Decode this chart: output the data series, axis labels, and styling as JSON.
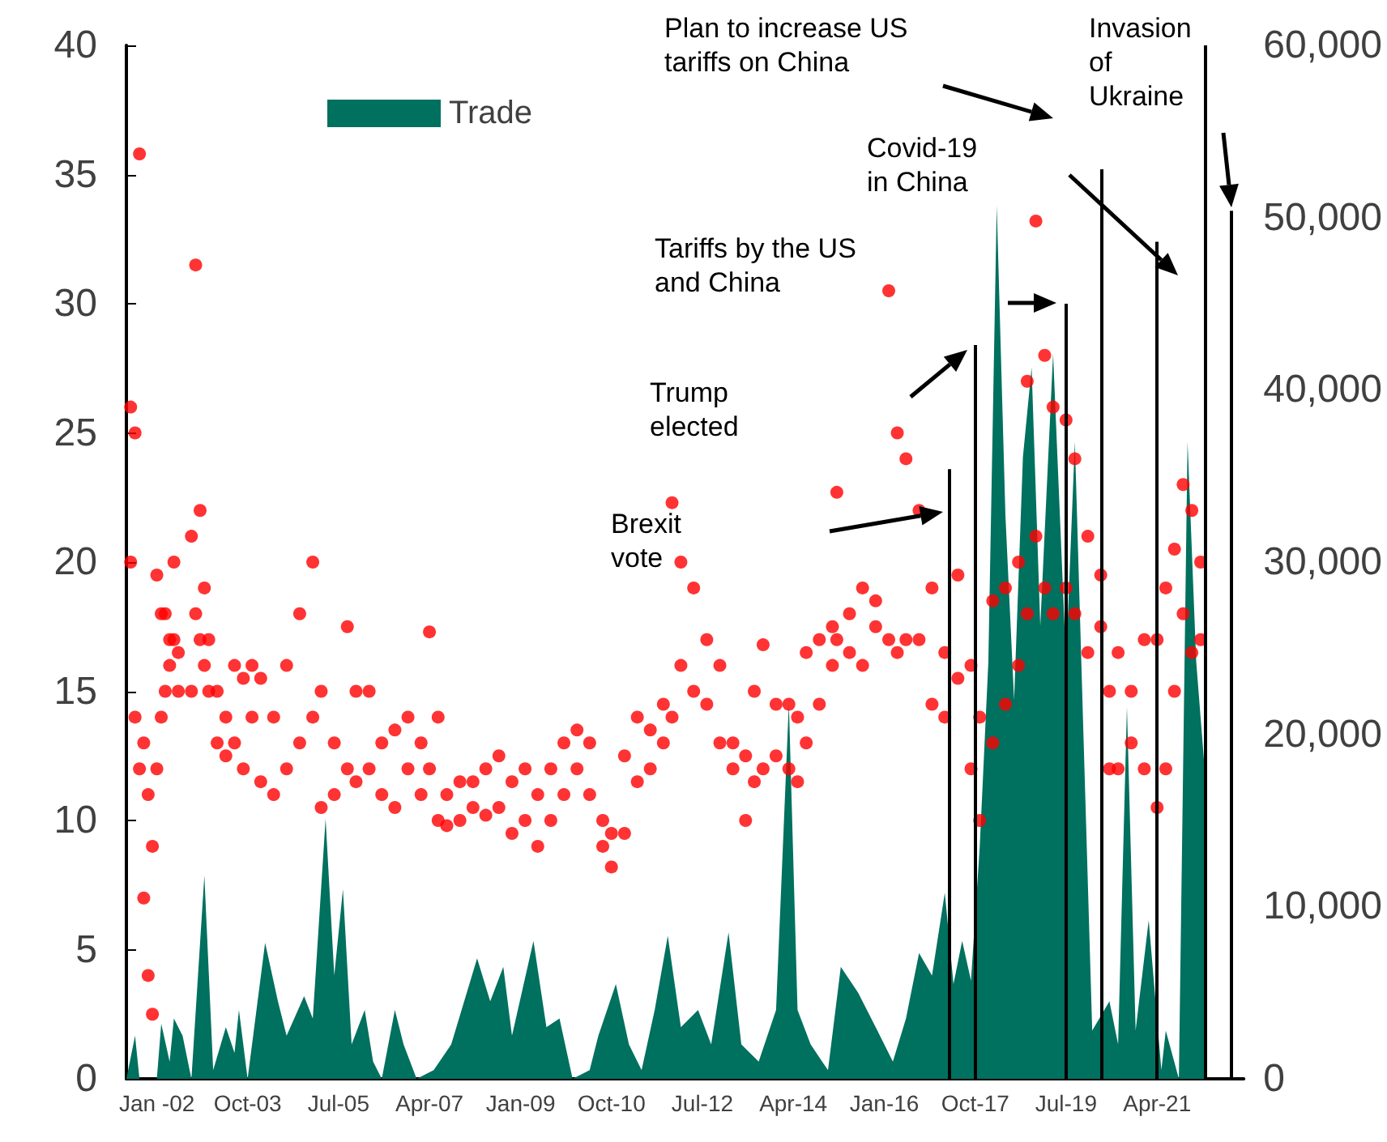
{
  "chart_data": {
    "type": "area",
    "legend": "top left",
    "xlim": [
      "2001-06",
      "2022-12"
    ],
    "xticks": [
      {
        "value": "2002-01",
        "label": "Jan -02"
      },
      {
        "value": "2003-10",
        "label": "Oct-03"
      },
      {
        "value": "2005-07",
        "label": "Jul-05"
      },
      {
        "value": "2007-04",
        "label": "Apr-07"
      },
      {
        "value": "2009-01",
        "label": "Jan-09"
      },
      {
        "value": "2010-10",
        "label": "Oct-10"
      },
      {
        "value": "2012-07",
        "label": "Jul-12"
      },
      {
        "value": "2014-04",
        "label": "Apr-14"
      },
      {
        "value": "2016-01",
        "label": "Jan-16"
      },
      {
        "value": "2017-10",
        "label": "Oct-17"
      },
      {
        "value": "2019-07",
        "label": "Jul-19"
      },
      {
        "value": "2021-04",
        "label": "Apr-21"
      }
    ],
    "ylim": [
      0,
      40
    ],
    "yticks": [
      0,
      5,
      10,
      15,
      20,
      25,
      30,
      35,
      40
    ],
    "y2lim": [
      0,
      60000
    ],
    "y2ticks": [
      {
        "value": 0,
        "label": "0"
      },
      {
        "value": 10000,
        "label": "10,000"
      },
      {
        "value": 20000,
        "label": "20,000"
      },
      {
        "value": 30000,
        "label": "30,000"
      },
      {
        "value": 40000,
        "label": "40,000"
      },
      {
        "value": 50000,
        "label": "50,000"
      },
      {
        "value": 60000,
        "label": "60,000"
      }
    ],
    "series": [
      {
        "name": "Trade",
        "type": "area",
        "axis": "y2",
        "color": "#00705f",
        "x": [
          "2001-06",
          "2001-08",
          "2001-09",
          "2002-01",
          "2002-02",
          "2002-04",
          "2002-05",
          "2002-07",
          "2002-09",
          "2002-12",
          "2003-02",
          "2003-05",
          "2003-07",
          "2003-08",
          "2003-10",
          "2004-02",
          "2004-05",
          "2004-07",
          "2004-11",
          "2005-01",
          "2005-04",
          "2005-06",
          "2005-08",
          "2005-10",
          "2006-01",
          "2006-03",
          "2006-05",
          "2006-08",
          "2006-10",
          "2007-01",
          "2007-05",
          "2007-09",
          "2008-03",
          "2008-06",
          "2008-09",
          "2008-11",
          "2009-04",
          "2009-07",
          "2009-10",
          "2010-01",
          "2010-05",
          "2010-07",
          "2010-11",
          "2011-02",
          "2011-05",
          "2011-08",
          "2011-11",
          "2012-02",
          "2012-06",
          "2012-09",
          "2013-01",
          "2013-04",
          "2013-08",
          "2013-12",
          "2014-03",
          "2014-05",
          "2014-08",
          "2014-12",
          "2015-03",
          "2015-07",
          "2015-11",
          "2016-03",
          "2016-06",
          "2016-09",
          "2016-12",
          "2017-03",
          "2017-05",
          "2017-07",
          "2017-09",
          "2017-11",
          "2018-01",
          "2018-03",
          "2018-05",
          "2018-07",
          "2018-09",
          "2018-11",
          "2019-01",
          "2019-04",
          "2019-07",
          "2019-09",
          "2019-11",
          "2020-01",
          "2020-05",
          "2020-07",
          "2020-09",
          "2020-11",
          "2021-02",
          "2021-05",
          "2021-06",
          "2021-09",
          "2021-11",
          "2022-01",
          "2022-03"
        ],
        "values": [
          0,
          2500,
          0,
          0,
          3200,
          1000,
          3500,
          2500,
          0,
          11800,
          500,
          3000,
          1500,
          4000,
          0,
          7900,
          4500,
          2500,
          4800,
          3500,
          15100,
          6000,
          11000,
          2000,
          4000,
          1000,
          0,
          4000,
          2000,
          0,
          500,
          2000,
          7000,
          4500,
          6500,
          2500,
          8000,
          3000,
          3500,
          0,
          500,
          2500,
          5500,
          2000,
          500,
          4000,
          8300,
          3000,
          4000,
          2000,
          8500,
          2000,
          1000,
          4000,
          21800,
          4000,
          2000,
          500,
          6500,
          5000,
          3000,
          1000,
          3500,
          7300,
          6000,
          10800,
          5500,
          8000,
          5700,
          13400,
          24200,
          50700,
          32700,
          22000,
          36100,
          41300,
          26300,
          42100,
          24200,
          37000,
          19800,
          2800,
          4500,
          2000,
          21600,
          2800,
          9200,
          500,
          2800,
          0,
          37000,
          24200,
          18000
        ]
      },
      {
        "type": "scatter",
        "marker": "circle",
        "color": "#ff0000",
        "x": [
          "2001-07",
          "2001-07",
          "2001-08",
          "2001-08",
          "2001-09",
          "2001-09",
          "2001-10",
          "2001-10",
          "2001-11",
          "2001-11",
          "2001-12",
          "2001-12",
          "2002-01",
          "2002-01",
          "2002-02",
          "2002-02",
          "2002-03",
          "2002-03",
          "2002-04",
          "2002-04",
          "2002-05",
          "2002-05",
          "2002-06",
          "2002-06",
          "2002-09",
          "2002-09",
          "2002-10",
          "2002-10",
          "2002-11",
          "2002-11",
          "2002-12",
          "2002-12",
          "2003-01",
          "2003-01",
          "2003-03",
          "2003-03",
          "2003-05",
          "2003-05",
          "2003-07",
          "2003-07",
          "2003-09",
          "2003-09",
          "2003-11",
          "2003-11",
          "2004-01",
          "2004-01",
          "2004-04",
          "2004-04",
          "2004-07",
          "2004-07",
          "2004-10",
          "2004-10",
          "2005-01",
          "2005-01",
          "2005-03",
          "2005-03",
          "2005-06",
          "2005-06",
          "2005-09",
          "2005-09",
          "2005-11",
          "2005-11",
          "2006-02",
          "2006-02",
          "2006-05",
          "2006-05",
          "2006-08",
          "2006-08",
          "2006-11",
          "2006-11",
          "2007-02",
          "2007-02",
          "2007-04",
          "2007-04",
          "2007-06",
          "2007-06",
          "2007-08",
          "2007-08",
          "2007-11",
          "2007-11",
          "2008-02",
          "2008-02",
          "2008-05",
          "2008-05",
          "2008-08",
          "2008-08",
          "2008-11",
          "2008-11",
          "2009-02",
          "2009-02",
          "2009-05",
          "2009-05",
          "2009-08",
          "2009-08",
          "2009-11",
          "2009-11",
          "2010-02",
          "2010-02",
          "2010-05",
          "2010-05",
          "2010-08",
          "2010-08",
          "2010-10",
          "2010-10",
          "2011-01",
          "2011-01",
          "2011-04",
          "2011-04",
          "2011-07",
          "2011-07",
          "2011-10",
          "2011-10",
          "2011-12",
          "2011-12",
          "2012-02",
          "2012-02",
          "2012-05",
          "2012-05",
          "2012-08",
          "2012-08",
          "2012-11",
          "2012-11",
          "2013-02",
          "2013-02",
          "2013-05",
          "2013-05",
          "2013-07",
          "2013-07",
          "2013-09",
          "2013-09",
          "2013-12",
          "2013-12",
          "2014-03",
          "2014-03",
          "2014-05",
          "2014-05",
          "2014-07",
          "2014-07",
          "2014-10",
          "2014-10",
          "2015-01",
          "2015-01",
          "2015-02",
          "2015-02",
          "2015-05",
          "2015-05",
          "2015-08",
          "2015-08",
          "2015-11",
          "2015-11",
          "2016-02",
          "2016-02",
          "2016-04",
          "2016-04",
          "2016-06",
          "2016-06",
          "2016-09",
          "2016-09",
          "2016-12",
          "2016-12",
          "2017-03",
          "2017-03",
          "2017-06",
          "2017-06",
          "2017-09",
          "2017-09",
          "2017-11",
          "2017-11",
          "2018-02",
          "2018-02",
          "2018-05",
          "2018-05",
          "2018-08",
          "2018-08",
          "2018-10",
          "2018-10",
          "2018-12",
          "2018-12",
          "2019-02",
          "2019-02",
          "2019-04",
          "2019-04",
          "2019-07",
          "2019-07",
          "2019-09",
          "2019-09",
          "2019-12",
          "2019-12",
          "2020-03",
          "2020-03",
          "2020-05",
          "2020-05",
          "2020-07",
          "2020-07",
          "2020-10",
          "2020-10",
          "2021-01",
          "2021-01",
          "2021-04",
          "2021-04",
          "2021-06",
          "2021-06",
          "2021-08",
          "2021-08",
          "2021-10",
          "2021-10",
          "2021-12",
          "2021-12",
          "2022-02",
          "2022-02"
        ],
        "values": [
          26,
          20,
          25,
          14,
          35.8,
          12,
          13,
          7,
          11,
          4,
          9,
          2.5,
          19.5,
          12,
          18,
          14,
          18,
          15,
          17,
          16,
          20,
          17,
          16.5,
          15,
          21,
          15,
          31.5,
          18,
          22,
          17,
          19,
          16,
          17,
          15,
          15,
          13,
          14,
          12.5,
          16,
          13,
          15.5,
          12,
          16,
          14,
          15.5,
          11.5,
          14,
          11,
          16,
          12,
          18,
          13,
          20,
          14,
          15,
          10.5,
          13,
          11,
          17.5,
          12,
          15,
          11.5,
          15,
          12,
          13,
          11,
          13.5,
          10.5,
          14,
          12,
          13,
          11,
          17.3,
          12,
          14,
          10,
          11,
          9.8,
          11.5,
          10,
          11.5,
          10.5,
          12,
          10.2,
          12.5,
          10.5,
          11.5,
          9.5,
          12,
          10,
          11,
          9,
          12,
          10,
          13,
          11,
          13.5,
          12,
          13,
          11,
          10,
          9,
          9.5,
          8.2,
          12.5,
          9.5,
          14,
          11.5,
          13.5,
          12,
          14.5,
          13,
          22.3,
          14,
          20,
          16,
          19,
          15,
          17,
          14.5,
          16,
          13,
          13,
          12,
          12.5,
          10,
          15,
          11.5,
          16.8,
          12,
          14.5,
          12.5,
          14.5,
          12,
          14,
          11.5,
          16.5,
          13,
          17,
          14.5,
          17.5,
          16,
          22.7,
          17,
          18,
          16.5,
          19,
          16,
          18.5,
          17.5,
          30.5,
          17,
          25,
          16.5,
          24,
          17,
          22,
          17,
          19,
          14.5,
          16.5,
          14,
          19.5,
          15.5,
          16,
          12,
          14,
          10,
          18.5,
          13,
          19,
          14.5,
          20,
          16,
          27,
          18,
          33.2,
          21,
          28,
          19,
          26,
          18,
          25.5,
          19,
          24,
          18,
          21,
          16.5,
          19.5,
          17.5,
          15,
          12,
          16.5,
          12,
          15,
          13,
          17,
          12,
          17,
          10.5,
          19,
          12,
          20.5,
          15,
          23,
          18,
          22,
          16.5,
          20,
          17
        ]
      }
    ],
    "ref_lines": [
      {
        "axis": "x",
        "value": "2017-04",
        "color": "#000000"
      },
      {
        "axis": "x",
        "value": "2017-10",
        "color": "#000000"
      },
      {
        "axis": "x",
        "value": "2019-07",
        "color": "#000000"
      },
      {
        "axis": "x",
        "value": "2020-03",
        "color": "#000000"
      },
      {
        "axis": "x",
        "value": "2021-04",
        "color": "#000000"
      },
      {
        "axis": "x",
        "value": "2022-03",
        "color": "#000000"
      },
      {
        "axis": "x",
        "value": "2022-09",
        "color": "#000000"
      }
    ],
    "annotations": [
      "Brexit\nvote",
      "Trump\nelected",
      "Tariffs by the US\nand China",
      "Covid-19\nin China",
      "Plan to increase US\ntariffs on China",
      "Invasion\nof\nUkraine"
    ]
  }
}
